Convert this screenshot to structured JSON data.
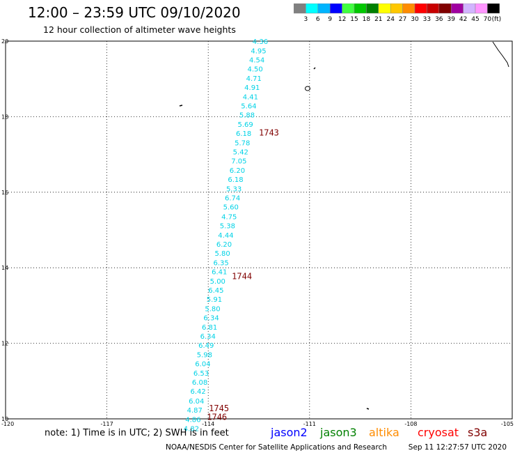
{
  "title": "12:00 – 23:59 UTC 09/10/2020",
  "subtitle": "12 hour collection of altimeter wave heights",
  "colorbar": {
    "unit": "(ft)",
    "levels": [
      "3",
      "6",
      "9",
      "12",
      "15",
      "18",
      "21",
      "24",
      "27",
      "30",
      "33",
      "36",
      "39",
      "42",
      "45",
      "70"
    ],
    "colors": [
      "#808080",
      "#00ffff",
      "#00b4ff",
      "#0000ff",
      "#40ff40",
      "#00c800",
      "#008000",
      "#ffff00",
      "#ffc800",
      "#ff8c00",
      "#ff0000",
      "#c80000",
      "#800000",
      "#a000a0",
      "#d2b4ff",
      "#ff96ff",
      "#000000"
    ]
  },
  "axes": {
    "lat_labels": [
      "20",
      "18",
      "16",
      "14",
      "12",
      "10"
    ],
    "lon_labels": [
      "-120",
      "-117",
      "-114",
      "-111",
      "-108",
      "-105"
    ]
  },
  "track": {
    "color": "#00d2e6",
    "points": [
      {
        "lat": 19.93,
        "lon": -112.46,
        "swh": "4.36"
      },
      {
        "lat": 19.68,
        "lon": -112.51,
        "swh": "4.95"
      },
      {
        "lat": 19.44,
        "lon": -112.56,
        "swh": "4.54"
      },
      {
        "lat": 19.2,
        "lon": -112.61,
        "swh": "4.50"
      },
      {
        "lat": 18.95,
        "lon": -112.65,
        "swh": "4.71"
      },
      {
        "lat": 18.71,
        "lon": -112.7,
        "swh": "4.91"
      },
      {
        "lat": 18.46,
        "lon": -112.75,
        "swh": "4.41"
      },
      {
        "lat": 18.22,
        "lon": -112.8,
        "swh": "5.64"
      },
      {
        "lat": 17.98,
        "lon": -112.85,
        "swh": "5.88"
      },
      {
        "lat": 17.73,
        "lon": -112.9,
        "swh": "5.69"
      },
      {
        "lat": 17.49,
        "lon": -112.95,
        "swh": "6.18"
      },
      {
        "lat": 17.24,
        "lon": -112.99,
        "swh": "5.78"
      },
      {
        "lat": 17.0,
        "lon": -113.04,
        "swh": "5.42"
      },
      {
        "lat": 16.76,
        "lon": -113.09,
        "swh": "7.05"
      },
      {
        "lat": 16.51,
        "lon": -113.14,
        "swh": "6.20"
      },
      {
        "lat": 16.27,
        "lon": -113.19,
        "swh": "6.18"
      },
      {
        "lat": 16.02,
        "lon": -113.24,
        "swh": "5.33"
      },
      {
        "lat": 15.78,
        "lon": -113.28,
        "swh": "6.74"
      },
      {
        "lat": 15.54,
        "lon": -113.33,
        "swh": "5.60"
      },
      {
        "lat": 15.29,
        "lon": -113.38,
        "swh": "4.75"
      },
      {
        "lat": 15.05,
        "lon": -113.43,
        "swh": "5.38"
      },
      {
        "lat": 14.8,
        "lon": -113.48,
        "swh": "4.44"
      },
      {
        "lat": 14.56,
        "lon": -113.53,
        "swh": "6.20"
      },
      {
        "lat": 14.32,
        "lon": -113.58,
        "swh": "5.80"
      },
      {
        "lat": 14.07,
        "lon": -113.62,
        "swh": "6.35"
      },
      {
        "lat": 13.83,
        "lon": -113.67,
        "swh": "6.41"
      },
      {
        "lat": 13.58,
        "lon": -113.72,
        "swh": "5.00"
      },
      {
        "lat": 13.34,
        "lon": -113.77,
        "swh": "6.45"
      },
      {
        "lat": 13.1,
        "lon": -113.82,
        "swh": "5.91"
      },
      {
        "lat": 12.85,
        "lon": -113.87,
        "swh": "5.80"
      },
      {
        "lat": 12.61,
        "lon": -113.91,
        "swh": "6.34"
      },
      {
        "lat": 12.36,
        "lon": -113.96,
        "swh": "6.81"
      },
      {
        "lat": 12.12,
        "lon": -114.01,
        "swh": "6.34"
      },
      {
        "lat": 11.88,
        "lon": -114.06,
        "swh": "6.49"
      },
      {
        "lat": 11.63,
        "lon": -114.11,
        "swh": "5.98"
      },
      {
        "lat": 11.39,
        "lon": -114.16,
        "swh": "6.04"
      },
      {
        "lat": 11.14,
        "lon": -114.21,
        "swh": "6.53"
      },
      {
        "lat": 10.9,
        "lon": -114.25,
        "swh": "6.08"
      },
      {
        "lat": 10.66,
        "lon": -114.3,
        "swh": "6.42"
      },
      {
        "lat": 10.41,
        "lon": -114.35,
        "swh": "6.04"
      },
      {
        "lat": 10.17,
        "lon": -114.4,
        "swh": "4.87"
      },
      {
        "lat": 9.92,
        "lon": -114.45,
        "swh": "4.86"
      },
      {
        "lat": 9.68,
        "lon": -114.5,
        "swh": "4.82"
      }
    ]
  },
  "time_labels": {
    "color": "#800000",
    "items": [
      {
        "text": "1743",
        "lat": 17.5,
        "lon": -112.5
      },
      {
        "text": "1744",
        "lat": 13.7,
        "lon": -113.3
      },
      {
        "text": "1745",
        "lat": 10.2,
        "lon": -113.98
      },
      {
        "text": "1746",
        "lat": 9.97,
        "lon": -114.04
      }
    ]
  },
  "footer": {
    "note": "note: 1) Time is in UTC; 2) SWH is in feet",
    "satellites": [
      {
        "name": "jason2",
        "color": "#0000ff"
      },
      {
        "name": "jason3",
        "color": "#008000"
      },
      {
        "name": "altika",
        "color": "#ff8c00"
      },
      {
        "name": "cryosat",
        "color": "#ff0000"
      },
      {
        "name": "s3a",
        "color": "#800000"
      }
    ],
    "credit": "NOAA/NESDIS Center for Satellite Applications and Research",
    "timestamp": "Sep 11 12:27:57 UTC 2020"
  }
}
